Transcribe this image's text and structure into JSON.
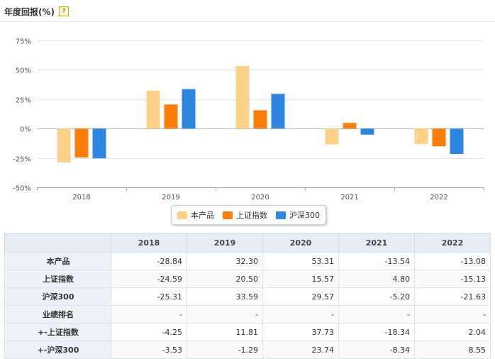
{
  "header": {
    "title": "年度回报(%)",
    "help_icon": "question-mark-icon"
  },
  "chart_data": {
    "type": "bar",
    "categories": [
      "2018",
      "2019",
      "2020",
      "2021",
      "2022"
    ],
    "series": [
      {
        "name": "本产品",
        "color": "#fcd28a",
        "values": [
          -28.84,
          32.3,
          53.31,
          -13.54,
          -13.08
        ]
      },
      {
        "name": "上证指数",
        "color": "#fb7d0a",
        "values": [
          -24.59,
          20.5,
          15.57,
          4.8,
          -15.13
        ]
      },
      {
        "name": "沪深300",
        "color": "#2f86e0",
        "values": [
          -25.31,
          33.59,
          29.57,
          -5.2,
          -21.63
        ]
      }
    ],
    "ylim": [
      -50,
      75
    ],
    "yticks": [
      75,
      50,
      25,
      0,
      -25,
      -50
    ],
    "ytick_labels": [
      "75%",
      "50%",
      "25%",
      "0%",
      "-25%",
      "-50%"
    ],
    "grid": true,
    "legend_position": "bottom"
  },
  "table": {
    "corner": "",
    "columns": [
      "2018",
      "2019",
      "2020",
      "2021",
      "2022"
    ],
    "rows": [
      {
        "label": "本产品",
        "values": [
          "-28.84",
          "32.30",
          "53.31",
          "-13.54",
          "-13.08"
        ]
      },
      {
        "label": "上证指数",
        "values": [
          "-24.59",
          "20.50",
          "15.57",
          "4.80",
          "-15.13"
        ]
      },
      {
        "label": "沪深300",
        "values": [
          "-25.31",
          "33.59",
          "29.57",
          "-5.20",
          "-21.63"
        ]
      },
      {
        "label": "业绩排名",
        "values": [
          "-",
          "-",
          "-",
          "-",
          "-"
        ]
      },
      {
        "label": "+-上证指数",
        "values": [
          "-4.25",
          "11.81",
          "37.73",
          "-18.34",
          "2.04"
        ]
      },
      {
        "label": "+-沪深300",
        "values": [
          "-3.53",
          "-1.29",
          "23.74",
          "-8.34",
          "8.55"
        ]
      }
    ]
  }
}
